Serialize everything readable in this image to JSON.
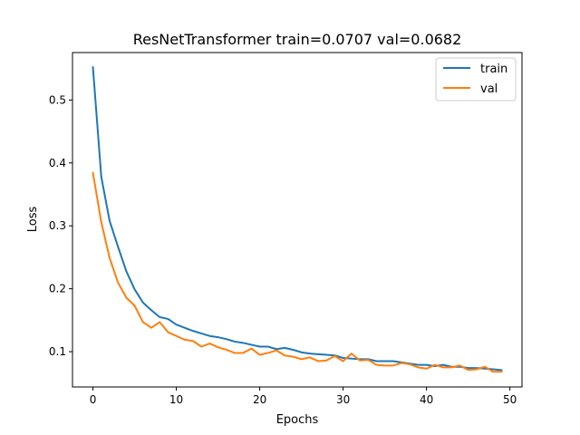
{
  "chart_data": {
    "type": "line",
    "title": "ResNetTransformer train=0.0707 val=0.0682",
    "xlabel": "Epochs",
    "ylabel": "Loss",
    "xlim": [
      -2.45,
      51.45
    ],
    "ylim": [
      0.0439,
      0.5754
    ],
    "xticks": [
      0,
      10,
      20,
      30,
      40,
      50
    ],
    "yticks": [
      0.1,
      0.2,
      0.3,
      0.4,
      0.5
    ],
    "xtick_labels": [
      "0",
      "10",
      "20",
      "30",
      "40",
      "50"
    ],
    "ytick_labels": [
      "0.1",
      "0.2",
      "0.3",
      "0.4",
      "0.5"
    ],
    "legend_position": "top-right",
    "grid": false,
    "x": [
      0,
      1,
      2,
      3,
      4,
      5,
      6,
      7,
      8,
      9,
      10,
      11,
      12,
      13,
      14,
      15,
      16,
      17,
      18,
      19,
      20,
      21,
      22,
      23,
      24,
      25,
      26,
      27,
      28,
      29,
      30,
      31,
      32,
      33,
      34,
      35,
      36,
      37,
      38,
      39,
      40,
      41,
      42,
      43,
      44,
      45,
      46,
      47,
      48,
      49
    ],
    "series": [
      {
        "name": "train",
        "color": "#1f77b4",
        "values": [
          0.552,
          0.378,
          0.308,
          0.267,
          0.228,
          0.199,
          0.178,
          0.166,
          0.155,
          0.152,
          0.143,
          0.138,
          0.133,
          0.129,
          0.125,
          0.123,
          0.12,
          0.116,
          0.114,
          0.111,
          0.108,
          0.108,
          0.104,
          0.106,
          0.103,
          0.099,
          0.097,
          0.096,
          0.095,
          0.094,
          0.09,
          0.089,
          0.088,
          0.088,
          0.085,
          0.085,
          0.085,
          0.083,
          0.081,
          0.079,
          0.079,
          0.077,
          0.079,
          0.076,
          0.076,
          0.074,
          0.074,
          0.073,
          0.072,
          0.0707
        ]
      },
      {
        "name": "val",
        "color": "#ff7f0e",
        "values": [
          0.384,
          0.306,
          0.249,
          0.21,
          0.186,
          0.173,
          0.147,
          0.138,
          0.147,
          0.131,
          0.125,
          0.119,
          0.117,
          0.108,
          0.113,
          0.107,
          0.103,
          0.098,
          0.098,
          0.105,
          0.095,
          0.098,
          0.102,
          0.094,
          0.092,
          0.088,
          0.091,
          0.085,
          0.086,
          0.093,
          0.085,
          0.097,
          0.086,
          0.087,
          0.079,
          0.078,
          0.078,
          0.082,
          0.08,
          0.075,
          0.073,
          0.079,
          0.075,
          0.075,
          0.078,
          0.071,
          0.072,
          0.076,
          0.068,
          0.0682
        ]
      }
    ]
  }
}
